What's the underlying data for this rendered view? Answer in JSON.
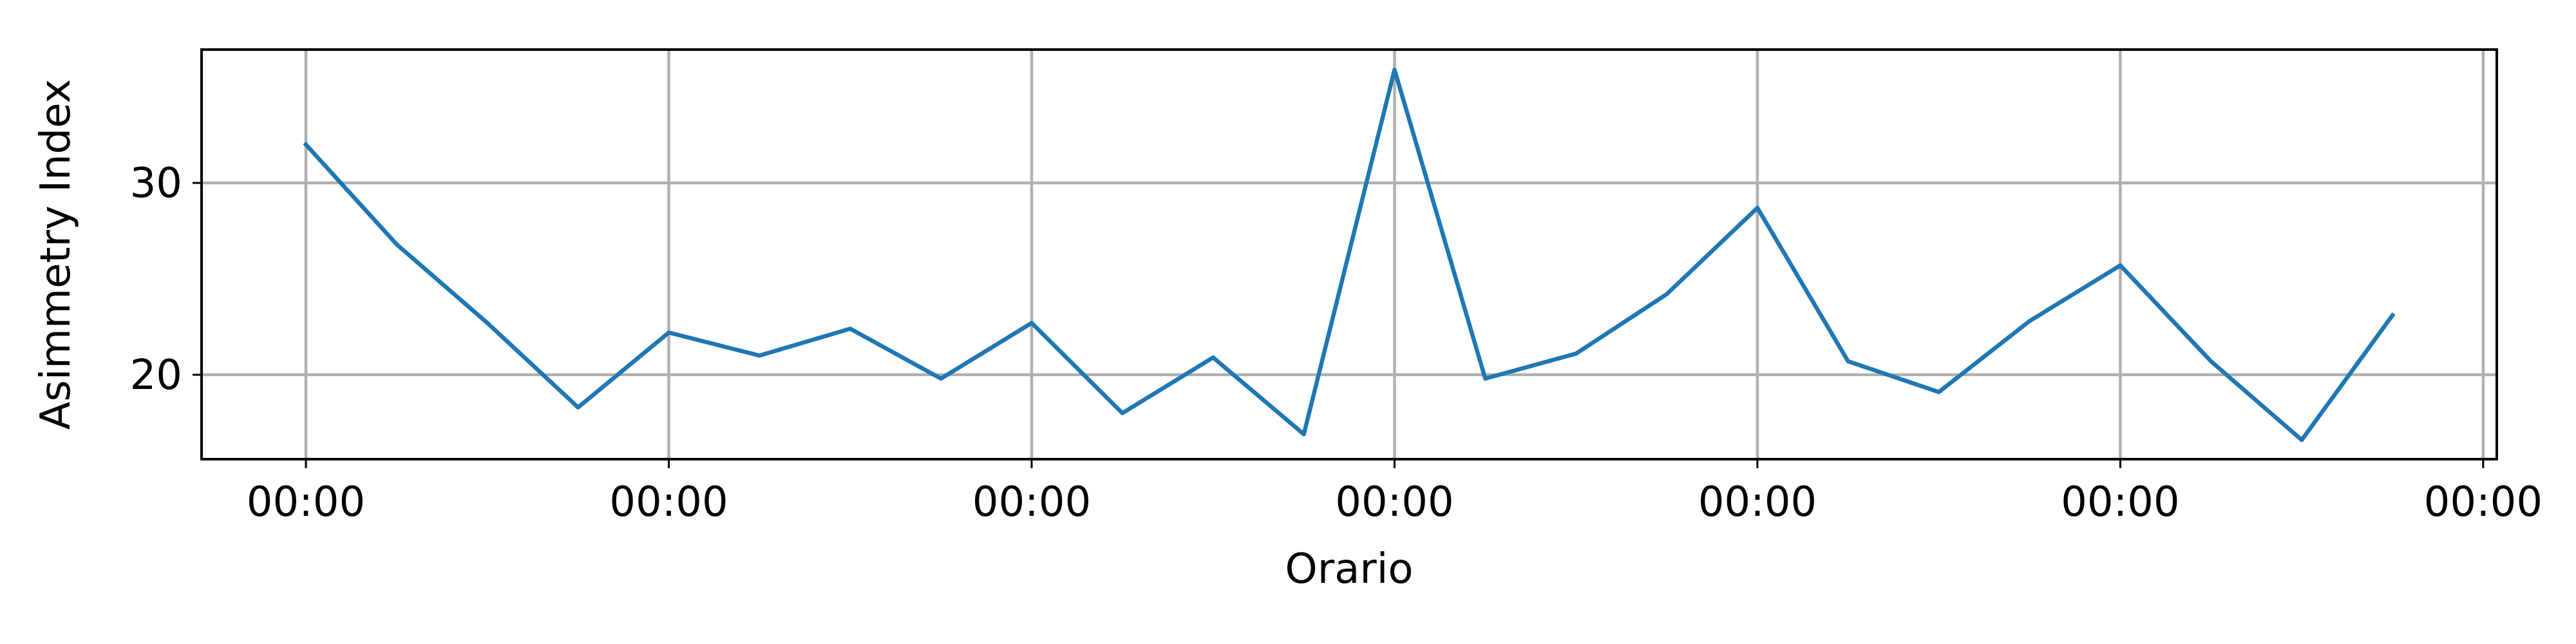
{
  "chart_data": {
    "type": "line",
    "title": "",
    "xlabel": "Orario",
    "ylabel": "Asimmetry Index",
    "x_tick_labels": [
      "00:00",
      "00:00",
      "00:00",
      "00:00",
      "00:00",
      "00:00",
      "00:00"
    ],
    "y_ticks": [
      20,
      30
    ],
    "xlim": [
      -1.15,
      24.15
    ],
    "ylim": [
      15.6,
      36.95
    ],
    "grid": true,
    "series": [
      {
        "color": "#1f77b4",
        "x": [
          0,
          1,
          2,
          3,
          4,
          5,
          6,
          7,
          8,
          9,
          10,
          11,
          12,
          13,
          14,
          15,
          16,
          17,
          18,
          19,
          20,
          21,
          22,
          23
        ],
        "values": [
          32.0,
          26.8,
          22.7,
          18.3,
          22.2,
          21.0,
          22.4,
          19.8,
          22.7,
          18.0,
          20.9,
          16.9,
          35.9,
          19.8,
          21.1,
          24.2,
          28.7,
          20.7,
          19.1,
          22.8,
          25.7,
          20.7,
          16.6,
          23.1
        ]
      }
    ]
  }
}
